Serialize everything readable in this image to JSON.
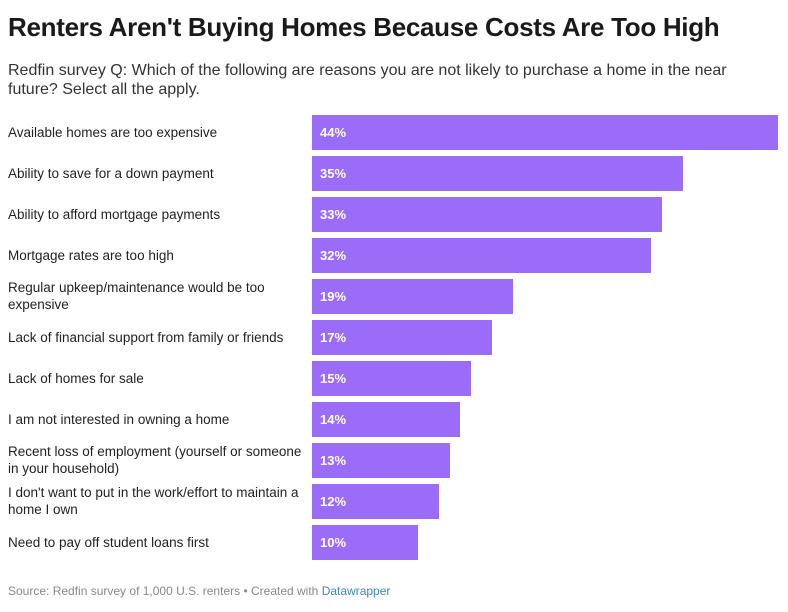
{
  "title": "Renters Aren't Buying Homes Because Costs Are Too High",
  "subtitle": "Redfin survey Q: Which of the following are reasons you are not likely to purchase a home in the near future? Select all the apply.",
  "source_text": "Source: Redfin survey of 1,000 U.S. renters • Created with ",
  "source_link": "Datawrapper",
  "chart_data": {
    "type": "bar",
    "orientation": "horizontal",
    "bar_color": "#9a6cf7",
    "value_suffix": "%",
    "xlim": [
      0,
      44
    ],
    "categories": [
      "Available homes are too expensive",
      "Ability to save for a down payment",
      "Ability to afford mortgage payments",
      "Mortgage rates are too high",
      "Regular upkeep/maintenance would be too expensive",
      "Lack of financial support from family or friends",
      "Lack of homes for sale",
      "I am not interested in owning a home",
      "Recent loss of employment (yourself or someone in your household)",
      "I don't want to put in the work/effort to maintain a home I own",
      "Need to pay off student loans first"
    ],
    "values": [
      44,
      35,
      33,
      32,
      19,
      17,
      15,
      14,
      13,
      12,
      10
    ],
    "labels": [
      "44%",
      "35%",
      "33%",
      "32%",
      "19%",
      "17%",
      "15%",
      "14%",
      "13%",
      "12%",
      "10%"
    ]
  }
}
